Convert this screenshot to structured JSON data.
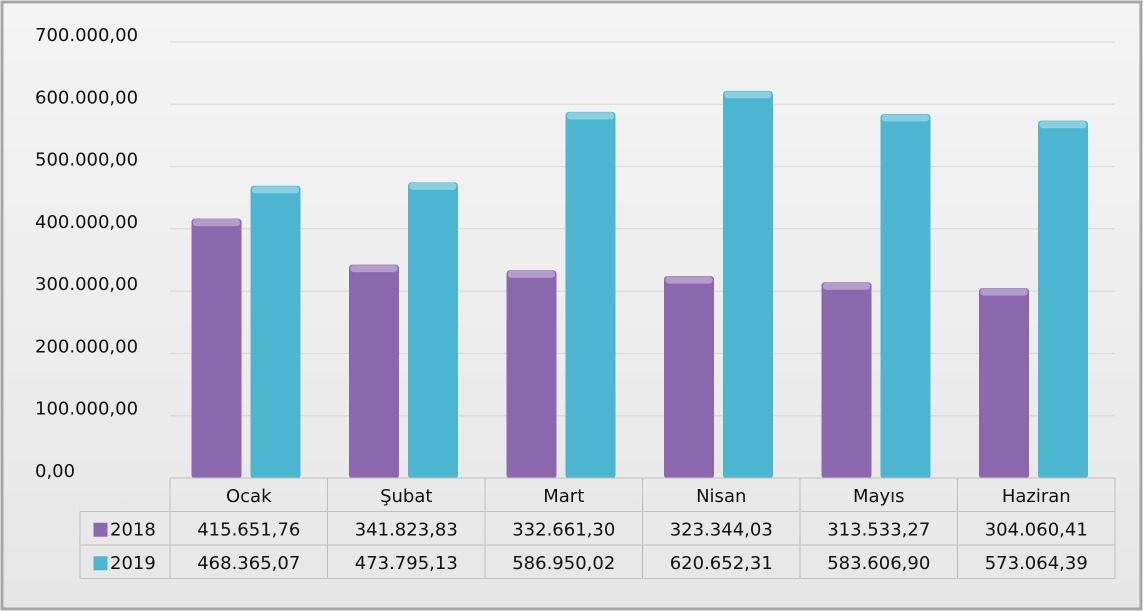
{
  "chart_data": {
    "type": "bar",
    "categories": [
      "Ocak",
      "Şubat",
      "Mart",
      "Nisan",
      "Mayıs",
      "Haziran"
    ],
    "series": [
      {
        "name": "2018",
        "color": "#8b68ae",
        "values": [
          415651.76,
          341823.83,
          332661.3,
          323344.03,
          313533.27,
          304060.41
        ],
        "value_labels": [
          "415.651,76",
          "341.823,83",
          "332.661,30",
          "323.344,03",
          "313.533,27",
          "304.060,41"
        ]
      },
      {
        "name": "2019",
        "color": "#4cb6d0",
        "values": [
          468365.07,
          473795.13,
          586950.02,
          620652.31,
          583606.9,
          573064.39
        ],
        "value_labels": [
          "468.365,07",
          "473.795,13",
          "586.950,02",
          "620.652,31",
          "583.606,90",
          "573.064,39"
        ]
      }
    ],
    "ylim": [
      0,
      700000
    ],
    "yticks": [
      {
        "value": 0,
        "label": "0,00"
      },
      {
        "value": 100000,
        "label": "100.000,00"
      },
      {
        "value": 200000,
        "label": "200.000,00"
      },
      {
        "value": 300000,
        "label": "300.000,00"
      },
      {
        "value": 400000,
        "label": "400.000,00"
      },
      {
        "value": 500000,
        "label": "500.000,00"
      },
      {
        "value": 600000,
        "label": "600.000,00"
      },
      {
        "value": 700000,
        "label": "700.000,00"
      }
    ],
    "grid": true
  }
}
